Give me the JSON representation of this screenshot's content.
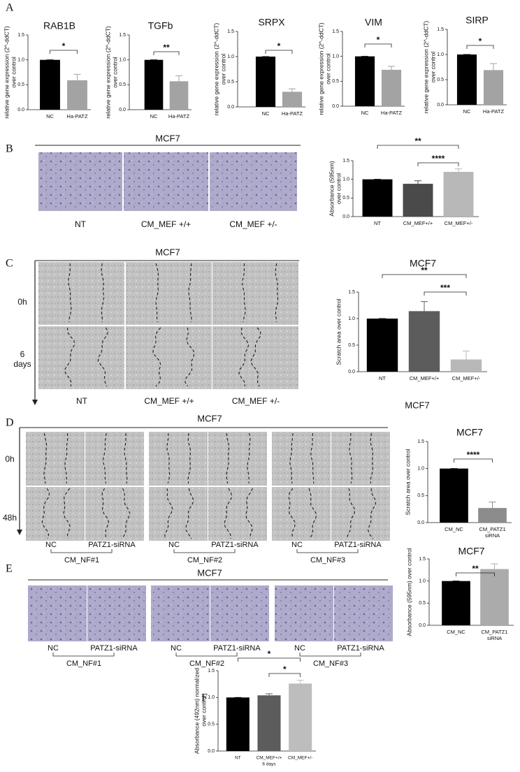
{
  "figure": {
    "panel_letters": [
      "A",
      "B",
      "C",
      "D",
      "E",
      "F"
    ],
    "panel_b": {
      "header": "MCF7",
      "labels": [
        "NT",
        "CM_MEF +/+",
        "CM_MEF +/-"
      ]
    },
    "panel_c": {
      "header": "MCF7",
      "rows": [
        [
          "0h"
        ],
        [
          "6",
          "days"
        ]
      ],
      "labels": [
        "NT",
        "CM_MEF +/+",
        "CM_MEF +/-"
      ]
    },
    "panel_d": {
      "header": "MCF7",
      "rows": [
        [
          "0h"
        ],
        [
          "48h"
        ]
      ],
      "groups": [
        {
          "name": "CM_NF#1",
          "labels": [
            "NC",
            "PATZ1-siRNA"
          ]
        },
        {
          "name": "CM_NF#2",
          "labels": [
            "NC",
            "PATZ1-siRNA"
          ]
        },
        {
          "name": "CM_NF#3",
          "labels": [
            "NC",
            "PATZ1-siRNA"
          ]
        }
      ]
    },
    "panel_e": {
      "header": "MCF7",
      "groups": [
        {
          "name": "CM_NF#1",
          "labels": [
            "NC",
            "PATZ1-siRNA"
          ]
        },
        {
          "name": "CM_NF#2",
          "labels": [
            "NC",
            "PATZ1-siRNA"
          ]
        },
        {
          "name": "CM_NF#3",
          "labels": [
            "NC",
            "PATZ1-siRNA"
          ]
        }
      ]
    },
    "stray_title": "MCF7"
  },
  "chart_data": [
    {
      "type": "bar",
      "title": "RAB1B",
      "ylabel": [
        "relative gene expression (2^-ddCT)",
        "over control"
      ],
      "categories": [
        [
          "NC"
        ],
        [
          "Ha-PATZ"
        ]
      ],
      "values": [
        1.0,
        0.59
      ],
      "errors": [
        0,
        0.12
      ],
      "colors": [
        "#000000",
        "#a3a3a3"
      ],
      "ylim": [
        0,
        1.5
      ],
      "yticks": [
        {
          "value": 0,
          "label": "0.0"
        },
        0.5,
        {
          "value": 1,
          "label": "1.0"
        },
        1.5
      ],
      "significance": [
        {
          "from": 0,
          "to": 1,
          "label": "*"
        }
      ]
    },
    {
      "type": "bar",
      "title": "TGFb",
      "ylabel": [
        "relative gene expression (2^-ddCT)",
        "over control"
      ],
      "categories": [
        [
          "NC"
        ],
        [
          "Ha-PATZ"
        ]
      ],
      "values": [
        1.0,
        0.57
      ],
      "errors": [
        0,
        0.11
      ],
      "colors": [
        "#000000",
        "#a3a3a3"
      ],
      "ylim": [
        0,
        1.5
      ],
      "yticks": [
        {
          "value": 0,
          "label": "0.0"
        },
        0.5,
        {
          "value": 1,
          "label": "1.0"
        },
        1.5
      ],
      "significance": [
        {
          "from": 0,
          "to": 1,
          "label": "**"
        }
      ]
    },
    {
      "type": "bar",
      "title": "SRPX",
      "ylabel": [
        "relative gene expression (2^-ddCT)",
        "over control"
      ],
      "categories": [
        [
          "NC"
        ],
        [
          "Ha-PATZ"
        ]
      ],
      "values": [
        1.0,
        0.3
      ],
      "errors": [
        0,
        0.06
      ],
      "colors": [
        "#000000",
        "#a3a3a3"
      ],
      "ylim": [
        0,
        1.5
      ],
      "yticks": [
        {
          "value": 0,
          "label": "0.0"
        },
        0.5,
        {
          "value": 1,
          "label": "1.0"
        },
        1.5
      ],
      "significance": [
        {
          "from": 0,
          "to": 1,
          "label": "*"
        }
      ]
    },
    {
      "type": "bar",
      "title": "VIM",
      "ylabel": [
        "relative gene expression (2^-ddCT)",
        "over control"
      ],
      "categories": [
        [
          "NC"
        ],
        [
          "Ha-PATZ"
        ]
      ],
      "values": [
        1.0,
        0.73
      ],
      "errors": [
        0,
        0.07
      ],
      "colors": [
        "#000000",
        "#a3a3a3"
      ],
      "ylim": [
        0,
        1.5
      ],
      "yticks": [
        {
          "value": 0,
          "label": "0.0"
        },
        0.5,
        {
          "value": 1,
          "label": "1.0"
        },
        1.5
      ],
      "significance": [
        {
          "from": 0,
          "to": 1,
          "label": "*"
        }
      ]
    },
    {
      "type": "bar",
      "title": "SIRP",
      "ylabel": [
        "relative gene expression (2^-ddCT)",
        "over control"
      ],
      "categories": [
        [
          "NC"
        ],
        [
          "Ha-PATZ"
        ]
      ],
      "values": [
        1.0,
        0.69
      ],
      "errors": [
        0,
        0.13
      ],
      "colors": [
        "#000000",
        "#a3a3a3"
      ],
      "ylim": [
        0,
        1.5
      ],
      "yticks": [
        {
          "value": 0,
          "label": "0.0"
        },
        0.5,
        {
          "value": 1,
          "label": "1.0"
        },
        1.5
      ],
      "significance": [
        {
          "from": 0,
          "to": 1,
          "label": "*"
        }
      ]
    },
    {
      "type": "bar",
      "ylabel": [
        "Absorbance (595nm)",
        "over control"
      ],
      "categories": [
        [
          "NT"
        ],
        [
          "CM_MEF+/+"
        ],
        [
          "CM_MEF+/-"
        ]
      ],
      "values": [
        1.0,
        0.88,
        1.2
      ],
      "errors": [
        0,
        0.08,
        0.08
      ],
      "colors": [
        "#000000",
        "#4a4a4a",
        "#b8b8b8"
      ],
      "ylim": [
        0,
        1.5
      ],
      "yticks": [
        {
          "value": 0,
          "label": "0.0"
        },
        0.5,
        {
          "value": 1,
          "label": "1.0"
        },
        1.5
      ],
      "significance": [
        {
          "from": 0,
          "to": 2,
          "label": "**"
        },
        {
          "from": 1,
          "to": 2,
          "label": "****"
        }
      ]
    },
    {
      "type": "bar",
      "title": "MCF7",
      "ylabel": [
        "Scratch area over control"
      ],
      "categories": [
        [
          "NT"
        ],
        [
          "CM_MEF+/+"
        ],
        [
          "CM_MEF+/-"
        ]
      ],
      "values": [
        1.0,
        1.14,
        0.23
      ],
      "errors": [
        0,
        0.18,
        0.16
      ],
      "colors": [
        "#000000",
        "#5c5c5c",
        "#b8b8b8"
      ],
      "ylim": [
        0,
        1.5
      ],
      "yticks": [
        {
          "value": 0,
          "label": "0.0"
        },
        0.5,
        {
          "value": 1,
          "label": "1.0"
        },
        1.5
      ],
      "significance": [
        {
          "from": 0,
          "to": 2,
          "label": "**"
        },
        {
          "from": 1,
          "to": 2,
          "label": "***"
        }
      ]
    },
    {
      "type": "bar",
      "title": "MCF7",
      "ylabel": [
        "Scratch area over control"
      ],
      "categories": [
        [
          "CM_NC"
        ],
        [
          "CM_PATZ1",
          "siRNA"
        ]
      ],
      "values": [
        1.0,
        0.27
      ],
      "errors": [
        0,
        0.11
      ],
      "colors": [
        "#000000",
        "#8c8c8c"
      ],
      "ylim": [
        0,
        1.5
      ],
      "yticks": [
        {
          "value": 0,
          "label": "0.0"
        },
        0.5,
        {
          "value": 1,
          "label": "1.0"
        },
        1.5
      ],
      "significance": [
        {
          "from": 0,
          "to": 1,
          "label": "****"
        }
      ]
    },
    {
      "type": "bar",
      "title": "MCF7",
      "ylabel": [
        "Absorbance (595nm) over control"
      ],
      "categories": [
        [
          "CM_NC"
        ],
        [
          "CM_PATZ1",
          "siRNA"
        ]
      ],
      "values": [
        1.0,
        1.27
      ],
      "errors": [
        0,
        0.12
      ],
      "colors": [
        "#000000",
        "#ababab"
      ],
      "ylim": [
        0,
        1.5
      ],
      "yticks": [
        {
          "value": 0,
          "label": "0.0"
        },
        0.5,
        {
          "value": 1,
          "label": "1.0"
        },
        1.5
      ],
      "significance": [
        {
          "from": 0,
          "to": 1,
          "label": "**"
        }
      ]
    },
    {
      "type": "bar",
      "ylabel": [
        "Absorbance (492nm) normalized",
        "over control"
      ],
      "categories": [
        [
          "NT"
        ],
        [
          "CM_MEF+/+",
          "6 days"
        ],
        [
          "CM_MEF+/-"
        ]
      ],
      "values": [
        1.0,
        1.04,
        1.26
      ],
      "errors": [
        0,
        0.03,
        0.06
      ],
      "colors": [
        "#000000",
        "#5c5c5c",
        "#bdbdbd"
      ],
      "ylim": [
        0,
        1.5
      ],
      "yticks": [
        {
          "value": 0,
          "label": "0.0"
        },
        0.5,
        {
          "value": 1,
          "label": "1.0"
        },
        1.5
      ],
      "significance": [
        {
          "from": 0,
          "to": 2,
          "label": "*"
        },
        {
          "from": 1,
          "to": 2,
          "label": "*"
        }
      ]
    }
  ]
}
